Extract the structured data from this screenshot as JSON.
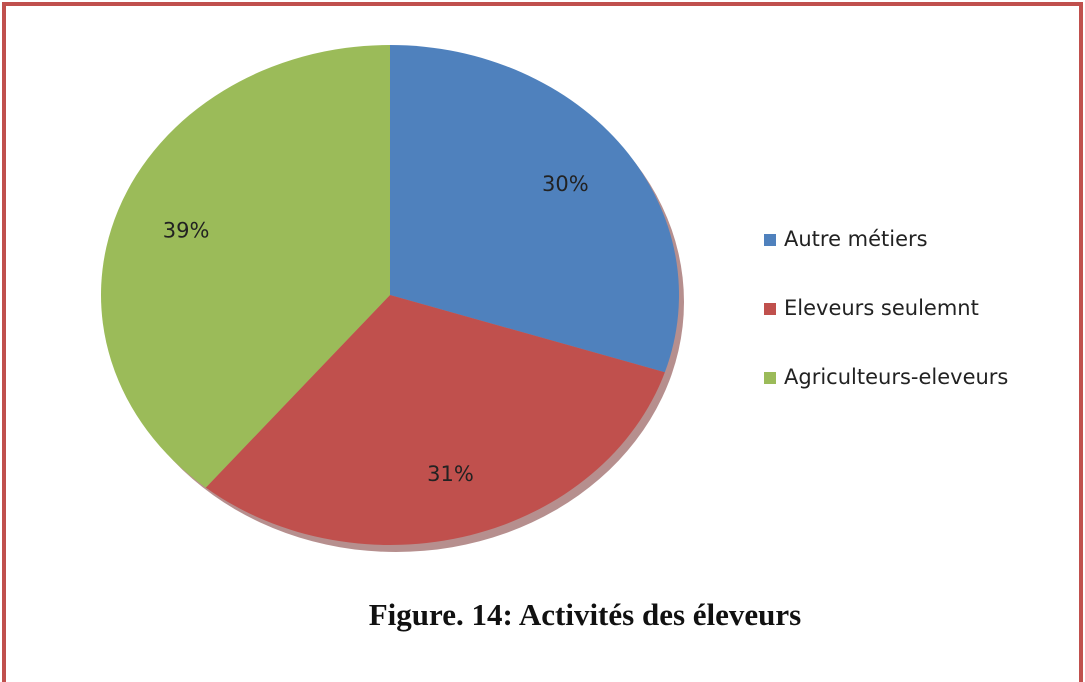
{
  "chart_data": {
    "type": "pie",
    "title": "Figure. 14: Activités des éleveurs",
    "categories": [
      "Autre métiers",
      "Eleveurs seulemnt",
      "Agriculteurs-eleveurs"
    ],
    "values": [
      30,
      31,
      39
    ],
    "value_labels": [
      "30%",
      "31%",
      "39%"
    ],
    "colors": [
      "#4f81bd",
      "#c0504d",
      "#9bbb59"
    ],
    "legend": "right"
  }
}
